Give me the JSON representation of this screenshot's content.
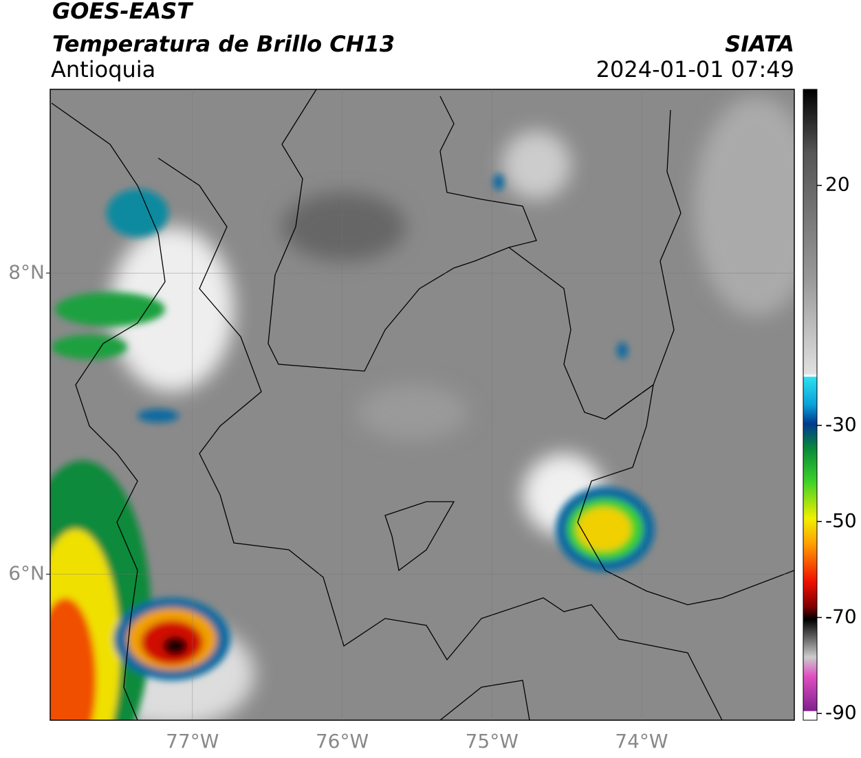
{
  "header": {
    "title": "GOES-EAST",
    "subtitle": "Temperatura de Brillo CH13",
    "region": "Antioquia",
    "source": "SIATA",
    "datetime": "2024-01-01 07:49"
  },
  "map": {
    "xlim": [
      -77.95,
      -72.98
    ],
    "ylim": [
      5.03,
      9.22
    ],
    "xticks": [
      {
        "value": -77,
        "label": "77°W"
      },
      {
        "value": -76,
        "label": "76°W"
      },
      {
        "value": -75,
        "label": "75°W"
      },
      {
        "value": -74,
        "label": "74°W"
      }
    ],
    "yticks": [
      {
        "value": 6,
        "label": "6°N"
      },
      {
        "value": 8,
        "label": "8°N"
      }
    ],
    "grid": true
  },
  "colorbar": {
    "lim": [
      -91.4,
      40
    ],
    "ticks": [
      20,
      -30,
      -50,
      -70,
      -90
    ]
  }
}
